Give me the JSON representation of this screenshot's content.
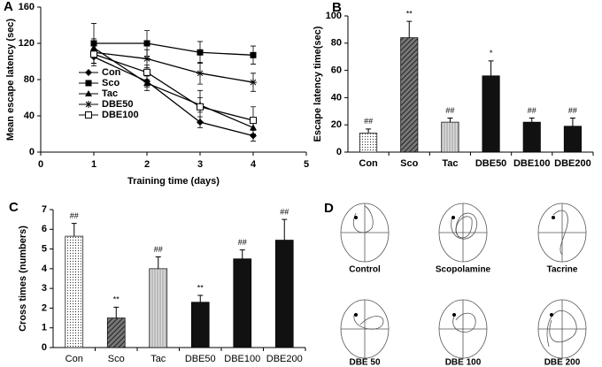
{
  "chart_data": [
    {
      "type": "line",
      "panel": "A",
      "x_label": "Training time (days)",
      "y_label": "Mean escape latency (sec)",
      "x": [
        1,
        2,
        3,
        4
      ],
      "xlim": [
        0,
        5
      ],
      "xticks": [
        0,
        1,
        2,
        3,
        4,
        5
      ],
      "ylim": [
        0,
        160
      ],
      "yticks": [
        0,
        40,
        80,
        120,
        160
      ],
      "legend": "center left",
      "series": [
        {
          "name": "Con",
          "color": "#000000",
          "marker": "diamond",
          "values": [
            105,
            78,
            33,
            18
          ],
          "errors": [
            7,
            6,
            6,
            6
          ]
        },
        {
          "name": "Sco",
          "color": "#000000",
          "marker": "square",
          "values": [
            120,
            120,
            110,
            107
          ],
          "errors": [
            22,
            14,
            12,
            10
          ]
        },
        {
          "name": "Tac",
          "color": "#000000",
          "marker": "triangle",
          "values": [
            115,
            76,
            52,
            27
          ],
          "errors": [
            10,
            8,
            8,
            8
          ]
        },
        {
          "name": "DBE50",
          "color": "#000000",
          "marker": "star",
          "values": [
            110,
            103,
            87,
            77
          ],
          "errors": [
            15,
            10,
            12,
            10
          ]
        },
        {
          "name": "DBE100",
          "color": "#000000",
          "marker": "open-square",
          "values": [
            108,
            88,
            50,
            35
          ],
          "errors": [
            10,
            8,
            18,
            15
          ]
        }
      ]
    },
    {
      "type": "bar",
      "panel": "B",
      "y_label": "Escape latency time(sec)",
      "categories": [
        "Con",
        "Sco",
        "Tac",
        "DBE50",
        "DBE100",
        "DBE200"
      ],
      "values": [
        14,
        84,
        22,
        56,
        22,
        19
      ],
      "errors": [
        3,
        12,
        3,
        11,
        3,
        6
      ],
      "annotations": [
        "##",
        "**",
        "##",
        "*",
        "##",
        "##"
      ],
      "fills": [
        "dots",
        "diagonal",
        "vertical",
        "#111111",
        "#111111",
        "#111111"
      ],
      "ylim": [
        0,
        100
      ],
      "yticks": [
        0,
        20,
        40,
        60,
        80,
        100
      ]
    },
    {
      "type": "bar",
      "panel": "C",
      "y_label": "Cross times (numbers)",
      "categories": [
        "Con",
        "Sco",
        "Tac",
        "DBE50",
        "DBE100",
        "DBE200"
      ],
      "values": [
        5.65,
        1.5,
        4.0,
        2.3,
        4.5,
        5.45
      ],
      "errors": [
        0.65,
        0.55,
        0.6,
        0.35,
        0.45,
        1.05
      ],
      "annotations": [
        "##",
        "**",
        "##",
        "**",
        "##",
        "##"
      ],
      "fills": [
        "dots",
        "diagonal",
        "vertical",
        "#111111",
        "#111111",
        "#111111"
      ],
      "ylim": [
        0,
        7
      ],
      "yticks": [
        0,
        1,
        2,
        3,
        4,
        5,
        6,
        7
      ]
    }
  ],
  "panel_d": {
    "panel": "D",
    "captions": [
      "Control",
      "Scopolamine",
      "Tacrine",
      "DBE  50",
      "DBE  100",
      "DBE  200"
    ]
  }
}
